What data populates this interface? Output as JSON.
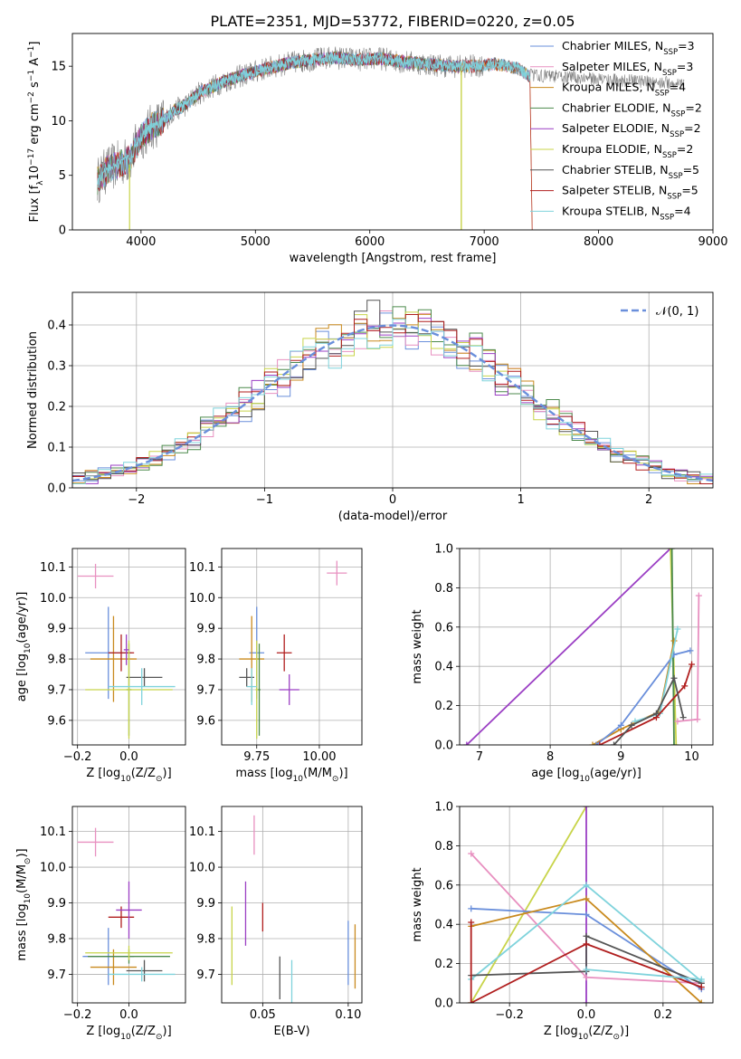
{
  "title": "PLATE=2351, MJD=53772, FIBERID=0220, z=0.05",
  "colors": {
    "chabrier_miles": "#6a8fdb",
    "salpeter_miles": "#e890c0",
    "kroupa_miles": "#c98a1e",
    "chabrier_elodie": "#4c8a4c",
    "salpeter_elodie": "#9b3fc4",
    "kroupa_elodie": "#c8d44a",
    "chabrier_stelib": "#555555",
    "salpeter_stelib": "#b01e1e",
    "kroupa_stelib": "#7fd3dc",
    "normal_curve": "#6a8fdb",
    "grid": "#b0b0b0"
  },
  "chart_data": [
    {
      "id": "spectrum",
      "type": "line",
      "xlabel": "wavelength [Angstrom, rest frame]",
      "ylabel": "Flux [f",
      "ylabel_sub": "λ",
      "ylabel_rest": "10",
      "ylabel_exp1": "−17",
      "ylabel_mid": " erg cm",
      "ylabel_exp2": "−2",
      "ylabel_mid2": " s",
      "ylabel_exp3": "−1",
      "ylabel_end": " A",
      "ylabel_exp4": "−1",
      "ylabel_close": "]",
      "xlim": [
        3400,
        9000
      ],
      "ylim": [
        0,
        18
      ],
      "xticks": [
        "4000",
        "5000",
        "6000",
        "7000",
        "8000",
        "9000"
      ],
      "yticks": [
        "0",
        "5",
        "10",
        "15"
      ],
      "legend": [
        {
          "name": "Chabrier MILES, N",
          "sub": "SSP",
          "val": "=3",
          "color_key": "chabrier_miles"
        },
        {
          "name": "Salpeter MILES, N",
          "sub": "SSP",
          "val": "=3",
          "color_key": "salpeter_miles"
        },
        {
          "name": "Kroupa MILES, N",
          "sub": "SSP",
          "val": "=4",
          "color_key": "kroupa_miles"
        },
        {
          "name": "Chabrier ELODIE, N",
          "sub": "SSP",
          "val": "=2",
          "color_key": "chabrier_elodie"
        },
        {
          "name": "Salpeter ELODIE, N",
          "sub": "SSP",
          "val": "=2",
          "color_key": "salpeter_elodie"
        },
        {
          "name": "Kroupa ELODIE, N",
          "sub": "SSP",
          "val": "=2",
          "color_key": "kroupa_elodie"
        },
        {
          "name": "Chabrier STELIB, N",
          "sub": "SSP",
          "val": "=5",
          "color_key": "chabrier_stelib"
        },
        {
          "name": "Salpeter STELIB, N",
          "sub": "SSP",
          "val": "=5",
          "color_key": "salpeter_stelib"
        },
        {
          "name": "Kroupa STELIB, N",
          "sub": "SSP",
          "val": "=4",
          "color_key": "kroupa_stelib"
        }
      ],
      "envelope": {
        "x": [
          3620,
          3700,
          3800,
          3900,
          4000,
          4100,
          4200,
          4300,
          4400,
          4500,
          4700,
          4900,
          5100,
          5300,
          5500,
          5700,
          5900,
          6100,
          6300,
          6500,
          6700,
          6900,
          7100,
          7300,
          7400
        ],
        "y": [
          4.5,
          5.5,
          6.0,
          6.5,
          8.5,
          9.5,
          10.0,
          11.0,
          11.5,
          12.5,
          13.5,
          14.2,
          14.8,
          15.3,
          15.6,
          15.8,
          15.6,
          15.7,
          15.4,
          15.2,
          15.0,
          15.0,
          15.2,
          14.8,
          14.0
        ]
      }
    },
    {
      "id": "residuals",
      "type": "histogram",
      "xlabel": "(data-model)/error",
      "ylabel": "Normed distribution",
      "xlim": [
        -2.5,
        2.5
      ],
      "ylim": [
        0,
        0.48
      ],
      "xticks": [
        "−2",
        "−1",
        "0",
        "1",
        "2"
      ],
      "yticks": [
        "0.0",
        "0.1",
        "0.2",
        "0.3",
        "0.4"
      ],
      "legend_label": "𝒩(0, 1)",
      "bin_width": 0.1,
      "bin_start": -2.5
    },
    {
      "id": "age_vs_Z",
      "type": "errorbar",
      "xlabel": "Z [log",
      "xlabel_sub": "10",
      "xlabel_rest": "(Z/Z",
      "xlabel_sub2": "⊙",
      "xlabel_close": ")]",
      "ylabel": "age  [log",
      "ylabel_sub": "10",
      "ylabel_rest": "(age/yr)]",
      "xlim": [
        -0.22,
        0.22
      ],
      "ylim": [
        9.52,
        10.16
      ],
      "xticks": [
        "−0.2",
        "0.0"
      ],
      "yticks": [
        "9.6",
        "9.7",
        "9.8",
        "9.9",
        "10.0",
        "10.1"
      ],
      "points": [
        {
          "c": "salpeter_miles",
          "x": -0.13,
          "y": 10.07,
          "xe": 0.07,
          "ye": 0.04
        },
        {
          "c": "chabrier_miles",
          "x": -0.08,
          "y": 9.82,
          "xe": 0.09,
          "ye": 0.15
        },
        {
          "c": "kroupa_miles",
          "x": -0.06,
          "y": 9.8,
          "xe": 0.09,
          "ye": 0.14
        },
        {
          "c": "salpeter_stelib",
          "x": -0.03,
          "y": 9.82,
          "xe": 0.05,
          "ye": 0.06
        },
        {
          "c": "chabrier_stelib",
          "x": 0.06,
          "y": 9.74,
          "xe": 0.07,
          "ye": 0.03
        },
        {
          "c": "chabrier_elodie",
          "x": 0.0,
          "y": 9.7,
          "xe": 0.01,
          "ye": 0.15
        },
        {
          "c": "kroupa_elodie",
          "x": 0.0,
          "y": 9.7,
          "xe": 0.17,
          "ye": 0.16
        },
        {
          "c": "kroupa_stelib",
          "x": 0.05,
          "y": 9.71,
          "xe": 0.13,
          "ye": 0.06
        },
        {
          "c": "salpeter_elodie",
          "x": -0.01,
          "y": 9.83,
          "xe": 0.01,
          "ye": 0.05
        }
      ]
    },
    {
      "id": "age_vs_mass",
      "type": "errorbar",
      "xlabel": "mass [log",
      "xlabel_sub": "10",
      "xlabel_rest": "(M/M",
      "xlabel_sub2": "⊙",
      "xlabel_close": ")]",
      "xlim": [
        9.61,
        10.17
      ],
      "ylim": [
        9.52,
        10.16
      ],
      "xticks": [
        "9.75",
        "10.00"
      ],
      "yticks": [
        "9.6",
        "9.7",
        "9.8",
        "9.9",
        "10.0",
        "10.1"
      ],
      "points": [
        {
          "c": "salpeter_miles",
          "x": 10.07,
          "y": 10.08,
          "xe": 0.04,
          "ye": 0.04
        },
        {
          "c": "chabrier_miles",
          "x": 9.75,
          "y": 9.82,
          "xe": 0.03,
          "ye": 0.15
        },
        {
          "c": "kroupa_miles",
          "x": 9.73,
          "y": 9.8,
          "xe": 0.05,
          "ye": 0.14
        },
        {
          "c": "salpeter_stelib",
          "x": 9.86,
          "y": 9.82,
          "xe": 0.03,
          "ye": 0.06
        },
        {
          "c": "chabrier_stelib",
          "x": 9.71,
          "y": 9.74,
          "xe": 0.03,
          "ye": 0.03
        },
        {
          "c": "chabrier_elodie",
          "x": 9.76,
          "y": 9.7,
          "xe": 0.005,
          "ye": 0.15
        },
        {
          "c": "kroupa_elodie",
          "x": 9.75,
          "y": 9.7,
          "xe": 0.005,
          "ye": 0.16
        },
        {
          "c": "kroupa_stelib",
          "x": 9.73,
          "y": 9.71,
          "xe": 0.02,
          "ye": 0.06
        },
        {
          "c": "salpeter_elodie",
          "x": 9.88,
          "y": 9.7,
          "xe": 0.04,
          "ye": 0.05
        }
      ]
    },
    {
      "id": "weight_vs_age",
      "type": "line",
      "xlabel": "age  [log",
      "xlabel_sub": "10",
      "xlabel_rest": "(age/yr)]",
      "ylabel": "mass weight",
      "xlim": [
        6.72,
        10.3
      ],
      "ylim": [
        0,
        1.0
      ],
      "xticks": [
        "7",
        "8",
        "9",
        "10"
      ],
      "yticks": [
        "0.0",
        "0.2",
        "0.4",
        "0.6",
        "0.8",
        "1.0"
      ],
      "series": [
        {
          "c": "salpeter_elodie",
          "x": [
            6.82,
            9.7
          ],
          "y": [
            0.0,
            1.0
          ]
        },
        {
          "c": "kroupa_elodie",
          "x": [
            9.7,
            9.78
          ],
          "y": [
            1.0,
            0.0
          ]
        },
        {
          "c": "chabrier_elodie",
          "x": [
            9.72,
            9.75
          ],
          "y": [
            1.0,
            0.0
          ]
        },
        {
          "c": "kroupa_miles",
          "x": [
            8.6,
            9.0,
            9.55,
            9.75
          ],
          "y": [
            0.0,
            0.08,
            0.17,
            0.53
          ]
        },
        {
          "c": "chabrier_miles",
          "x": [
            8.65,
            9.0,
            9.75,
            9.98
          ],
          "y": [
            0.0,
            0.1,
            0.46,
            0.48
          ]
        },
        {
          "c": "kroupa_stelib",
          "x": [
            9.2,
            9.55,
            9.8
          ],
          "y": [
            0.12,
            0.16,
            0.59
          ]
        },
        {
          "c": "salpeter_stelib",
          "x": [
            8.7,
            9.5,
            9.9,
            10.0
          ],
          "y": [
            0.0,
            0.14,
            0.3,
            0.41
          ]
        },
        {
          "c": "chabrier_stelib",
          "x": [
            8.9,
            9.15,
            9.5,
            9.75,
            9.88
          ],
          "y": [
            0.0,
            0.1,
            0.16,
            0.34,
            0.14
          ]
        },
        {
          "c": "salpeter_miles",
          "x": [
            9.8,
            10.08,
            10.1
          ],
          "y": [
            0.12,
            0.13,
            0.76
          ]
        }
      ]
    },
    {
      "id": "mass_vs_Z",
      "type": "errorbar",
      "xlabel": "Z [log",
      "xlabel_sub": "10",
      "xlabel_rest": "(Z/Z",
      "xlabel_sub2": "⊙",
      "xlabel_close": ")]",
      "ylabel": "mass [log",
      "ylabel_sub": "10",
      "ylabel_rest": "(M/M",
      "ylabel_sub2": "⊙",
      "ylabel_close": ")]",
      "xlim": [
        -0.22,
        0.22
      ],
      "ylim": [
        9.62,
        10.17
      ],
      "xticks": [
        "−0.2",
        "0.0"
      ],
      "yticks": [
        "9.7",
        "9.8",
        "9.9",
        "10.0",
        "10.1"
      ],
      "points": [
        {
          "c": "salpeter_miles",
          "x": -0.13,
          "y": 10.07,
          "xe": 0.07,
          "ye": 0.04
        },
        {
          "c": "chabrier_miles",
          "x": -0.08,
          "y": 9.75,
          "xe": 0.1,
          "ye": 0.08
        },
        {
          "c": "kroupa_miles",
          "x": -0.06,
          "y": 9.72,
          "xe": 0.09,
          "ye": 0.05
        },
        {
          "c": "salpeter_stelib",
          "x": -0.03,
          "y": 9.86,
          "xe": 0.05,
          "ye": 0.03
        },
        {
          "c": "chabrier_stelib",
          "x": 0.06,
          "y": 9.71,
          "xe": 0.07,
          "ye": 0.03
        },
        {
          "c": "chabrier_elodie",
          "x": 0.0,
          "y": 9.75,
          "xe": 0.16,
          "ye": 0.02
        },
        {
          "c": "kroupa_elodie",
          "x": 0.0,
          "y": 9.76,
          "xe": 0.17,
          "ye": 0.02
        },
        {
          "c": "kroupa_stelib",
          "x": 0.05,
          "y": 9.7,
          "xe": 0.13,
          "ye": 0.02
        },
        {
          "c": "salpeter_elodie",
          "x": 0.0,
          "y": 9.88,
          "xe": 0.05,
          "ye": 0.08
        }
      ]
    },
    {
      "id": "mass_vs_ebv",
      "type": "errorbar",
      "xlabel": "E(B-V)",
      "xlim": [
        0.026,
        0.108
      ],
      "ylim": [
        9.62,
        10.17
      ],
      "xticks": [
        "0.05",
        "0.10"
      ],
      "yticks": [
        "9.7",
        "9.8",
        "9.9",
        "10.0",
        "10.1"
      ],
      "points": [
        {
          "c": "salpeter_miles",
          "x": 0.045,
          "y": 10.09,
          "xe": 0.0,
          "ye": 0.055
        },
        {
          "c": "salpeter_elodie",
          "x": 0.04,
          "y": 9.87,
          "xe": 0.0,
          "ye": 0.09
        },
        {
          "c": "salpeter_stelib",
          "x": 0.05,
          "y": 9.86,
          "xe": 0.0,
          "ye": 0.04
        },
        {
          "c": "kroupa_elodie",
          "x": 0.032,
          "y": 9.78,
          "xe": 0.0,
          "ye": 0.11
        },
        {
          "c": "chabrier_stelib",
          "x": 0.06,
          "y": 9.69,
          "xe": 0.0,
          "ye": 0.06
        },
        {
          "c": "kroupa_stelib",
          "x": 0.067,
          "y": 9.68,
          "xe": 0.0,
          "ye": 0.06
        },
        {
          "c": "chabrier_miles",
          "x": 0.1,
          "y": 9.76,
          "xe": 0.0,
          "ye": 0.09
        },
        {
          "c": "kroupa_miles",
          "x": 0.104,
          "y": 9.75,
          "xe": 0.0,
          "ye": 0.09
        }
      ]
    },
    {
      "id": "weight_vs_Z",
      "type": "line",
      "xlabel": "Z [log",
      "xlabel_sub": "10",
      "xlabel_rest": "(Z/Z",
      "xlabel_sub2": "⊙",
      "xlabel_close": ")]",
      "ylabel": "mass weight",
      "xlim": [
        -0.33,
        0.33
      ],
      "ylim": [
        0,
        1.0
      ],
      "xticks": [
        "−0.2",
        "0.0",
        "0.2"
      ],
      "yticks": [
        "0.0",
        "0.2",
        "0.4",
        "0.6",
        "0.8",
        "1.0"
      ],
      "series": [
        {
          "c": "kroupa_elodie",
          "x": [
            -0.3,
            0.0
          ],
          "y": [
            0.0,
            1.0
          ]
        },
        {
          "c": "salpeter_elodie",
          "x": [
            0.0,
            0.0
          ],
          "y": [
            1.0,
            0.0
          ]
        },
        {
          "c": "salpeter_miles",
          "x": [
            -0.3,
            0.0,
            0.3
          ],
          "y": [
            0.76,
            0.13,
            0.1
          ]
        },
        {
          "c": "chabrier_miles",
          "x": [
            -0.3,
            0.0,
            0.3
          ],
          "y": [
            0.48,
            0.45,
            0.07
          ]
        },
        {
          "c": "kroupa_miles",
          "x": [
            -0.3,
            0.0,
            0.3
          ],
          "y": [
            0.39,
            0.53,
            0.0
          ]
        },
        {
          "c": "kroupa_stelib",
          "x": [
            -0.3,
            0.0,
            0.3
          ],
          "y": [
            0.12,
            0.6,
            0.11
          ]
        },
        {
          "c": "chabrier_stelib",
          "x": [
            -0.3,
            0.0,
            0.0,
            0.3
          ],
          "y": [
            0.14,
            0.16,
            0.34,
            0.1
          ]
        },
        {
          "c": "salpeter_stelib",
          "x": [
            -0.3,
            -0.3,
            0.0,
            0.3
          ],
          "y": [
            0.41,
            0.0,
            0.3,
            0.08
          ]
        },
        {
          "c": "kroupa_stelib",
          "x": [
            0.0,
            0.3
          ],
          "y": [
            0.17,
            0.12
          ]
        }
      ]
    }
  ]
}
